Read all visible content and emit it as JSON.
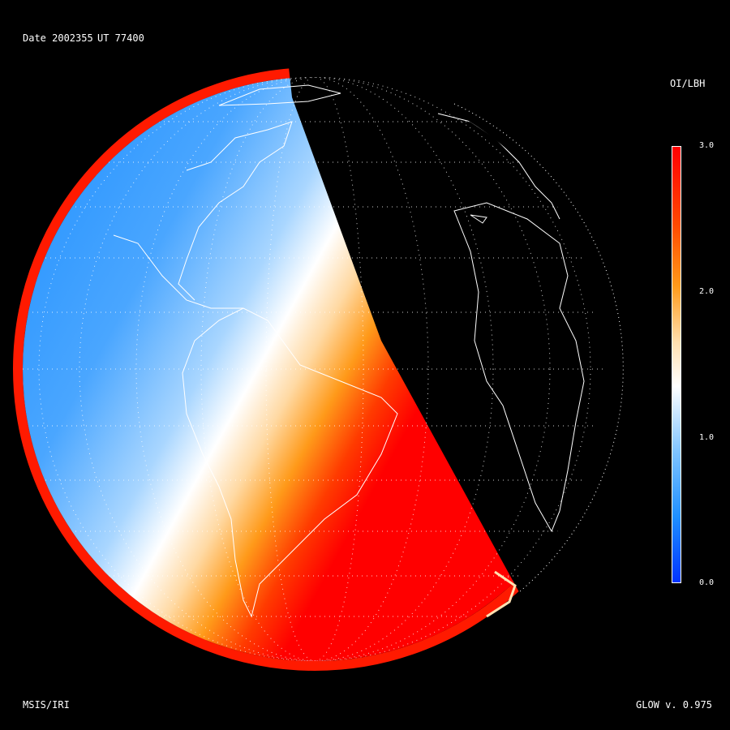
{
  "header": {
    "date_text": "Date 2002355",
    "ut_text": "UT 77400"
  },
  "footer": {
    "model_text": "MSIS/IRI",
    "version_text": "GLOW v. 0.975"
  },
  "colorbar": {
    "title": "OI/LBH",
    "ticks": [
      "3.0",
      "2.0",
      "1.0",
      "0.0"
    ],
    "min": 0.0,
    "max": 3.0,
    "colors": [
      "#0033ff",
      "#1e8fff",
      "#7fc4ff",
      "#ffffff",
      "#ffe0b0",
      "#ff9a1a",
      "#ff4a00",
      "#ff0000"
    ]
  },
  "map": {
    "projection": "orthographic",
    "grid": true,
    "day_side_colored": true,
    "night_side_color": "#000000",
    "coastline_color": "#ffffff"
  }
}
